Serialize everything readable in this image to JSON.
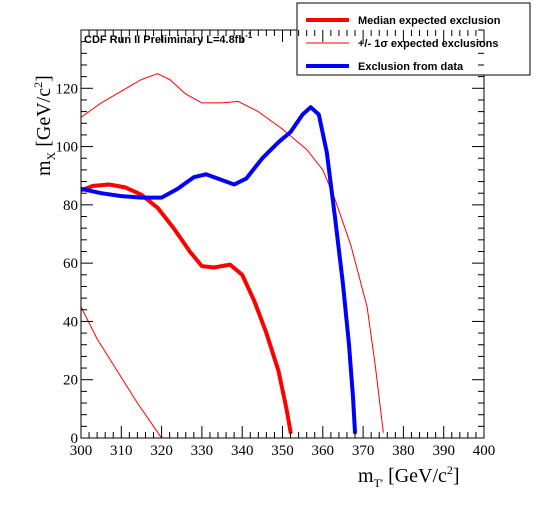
{
  "chart_data": {
    "type": "line",
    "title": "CDF Run II Preliminary L=4.8fb",
    "title_superscript": "-1",
    "xlabel": "m",
    "xlabel_subscript": "T'",
    "xlabel_unit": "[GeV/c",
    "xlabel_unit_sup": "2",
    "xlabel_unit_end": "]",
    "ylabel": "m",
    "ylabel_subscript": "X",
    "ylabel_unit": "[GeV/c",
    "ylabel_unit_sup": "2",
    "ylabel_unit_end": "]",
    "xlim": [
      300,
      400
    ],
    "ylim": [
      0,
      140
    ],
    "xticks": [
      300,
      310,
      320,
      330,
      340,
      350,
      360,
      370,
      380,
      390,
      400
    ],
    "yticks": [
      0,
      20,
      40,
      60,
      80,
      100,
      120
    ],
    "grid": false,
    "legend_position": "top-right",
    "legend": [
      {
        "label": "Median expected exclusion",
        "series": "median"
      },
      {
        "label": "+/- 1σ expected exclusions",
        "series": "sigma"
      },
      {
        "label": "Exclusion from data",
        "series": "observed"
      }
    ],
    "series": [
      {
        "id": "median",
        "color": "#ff0000",
        "width": 4,
        "points": [
          [
            300,
            85
          ],
          [
            303,
            86.5
          ],
          [
            307,
            87
          ],
          [
            311,
            86
          ],
          [
            315,
            83.5
          ],
          [
            319,
            79
          ],
          [
            323,
            72
          ],
          [
            327,
            64
          ],
          [
            330,
            59
          ],
          [
            333,
            58.5
          ],
          [
            337,
            59.5
          ],
          [
            340,
            56
          ],
          [
            343,
            47
          ],
          [
            346,
            36
          ],
          [
            349,
            23
          ],
          [
            351,
            10
          ],
          [
            352,
            2
          ]
        ]
      },
      {
        "id": "sigma_upper",
        "color": "#ff0000",
        "width": 1,
        "points": [
          [
            300,
            110
          ],
          [
            305,
            115
          ],
          [
            310,
            119
          ],
          [
            315,
            123
          ],
          [
            319,
            125
          ],
          [
            322,
            123
          ],
          [
            326,
            118
          ],
          [
            330,
            115
          ],
          [
            335,
            115
          ],
          [
            339,
            115.5
          ],
          [
            344,
            112
          ],
          [
            350,
            106
          ],
          [
            356,
            99
          ],
          [
            360,
            92
          ],
          [
            363,
            82
          ],
          [
            367,
            66
          ],
          [
            371,
            45
          ],
          [
            373,
            25
          ],
          [
            375,
            2
          ]
        ]
      },
      {
        "id": "sigma_lower",
        "color": "#ff0000",
        "width": 1,
        "points": [
          [
            300,
            45
          ],
          [
            304,
            34
          ],
          [
            309,
            23
          ],
          [
            314,
            12
          ],
          [
            318,
            4
          ],
          [
            320,
            0
          ]
        ]
      },
      {
        "id": "observed",
        "color": "#0000ff",
        "width": 4,
        "points": [
          [
            300,
            85.5
          ],
          [
            305,
            84
          ],
          [
            310,
            83
          ],
          [
            315,
            82.5
          ],
          [
            320,
            82.5
          ],
          [
            324,
            85.5
          ],
          [
            328,
            89.5
          ],
          [
            331,
            90.5
          ],
          [
            334,
            89
          ],
          [
            338,
            87
          ],
          [
            341,
            89
          ],
          [
            345,
            96
          ],
          [
            349,
            101.5
          ],
          [
            352,
            105
          ],
          [
            355,
            111
          ],
          [
            357,
            113.5
          ],
          [
            359,
            111
          ],
          [
            361,
            98
          ],
          [
            363,
            76
          ],
          [
            365,
            53
          ],
          [
            366.5,
            32
          ],
          [
            367.5,
            14
          ],
          [
            368,
            2
          ]
        ]
      }
    ]
  }
}
